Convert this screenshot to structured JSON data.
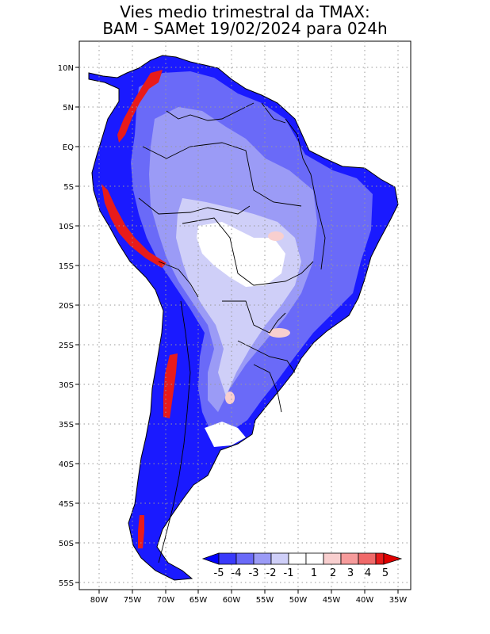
{
  "title": {
    "line1": "Vies medio trimestral da TMAX:",
    "line2": "BAM - SAMet 19/02/2024  para 024h"
  },
  "map": {
    "lon_ticks": [
      "80W",
      "75W",
      "70W",
      "65W",
      "60W",
      "55W",
      "50W",
      "45W",
      "40W",
      "35W"
    ],
    "lat_ticks": [
      "10N",
      "5N",
      "EQ",
      "5S",
      "10S",
      "15S",
      "20S",
      "25S",
      "30S",
      "35S",
      "40S",
      "45S",
      "50S",
      "55S"
    ],
    "grid": "dotted",
    "region": "South America"
  },
  "colorbar": {
    "labels": [
      "-5",
      "-4",
      "-3",
      "-2",
      "-1",
      "1",
      "2",
      "3",
      "4",
      "5"
    ],
    "colors": [
      "#0000ff",
      "#3a3afb",
      "#6a6af8",
      "#9b9bf6",
      "#cfcff8",
      "#ffffff",
      "#f8cfcf",
      "#f69b9b",
      "#f06a6a",
      "#e81b1b",
      "#e00000"
    ]
  }
}
